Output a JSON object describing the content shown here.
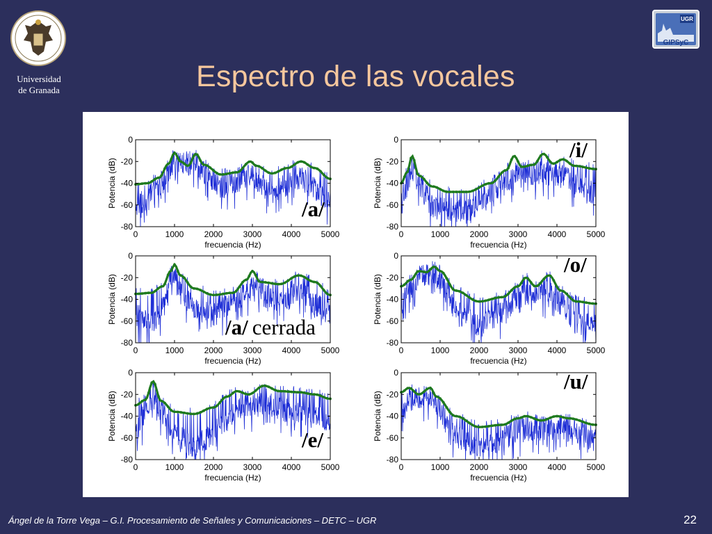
{
  "header": {
    "title": "Espectro de las vocales",
    "university": [
      "Universidad",
      "de Granada"
    ],
    "lab_logo_text": [
      "UGR",
      "GIPSyC"
    ]
  },
  "footer": {
    "text": "Ángel de la Torre Vega – G.I. Procesamiento de Señales y Comunicaciones – DETC – UGR",
    "page": "22"
  },
  "colors": {
    "background": "#2c2f5c",
    "title": "#f6c79d",
    "spectrum": "#1f2fd6",
    "envelope": "#1f7a1f"
  },
  "chart_data": [
    {
      "type": "line",
      "label": "/a/",
      "label_rest": "",
      "xlabel": "frecuencia (Hz)",
      "ylabel": "Potencia (dB)",
      "xlim": [
        0,
        5000
      ],
      "ylim": [
        -80,
        0
      ],
      "xticks": [
        0,
        1000,
        2000,
        3000,
        4000,
        5000
      ],
      "yticks": [
        0,
        -20,
        -40,
        -60,
        -80
      ],
      "series": [
        {
          "values": [
            [
              0,
              -41
            ],
            [
              300,
              -40
            ],
            [
              600,
              -35
            ],
            [
              850,
              -22
            ],
            [
              1000,
              -12
            ],
            [
              1150,
              -20
            ],
            [
              1350,
              -24
            ],
            [
              1550,
              -13
            ],
            [
              1750,
              -23
            ],
            [
              2200,
              -32
            ],
            [
              2600,
              -30
            ],
            [
              2950,
              -20
            ],
            [
              3100,
              -24
            ],
            [
              3500,
              -31
            ],
            [
              3900,
              -26
            ],
            [
              4250,
              -20
            ],
            [
              4600,
              -26
            ],
            [
              5000,
              -36
            ]
          ]
        },
        {
          "values": [
            [
              0,
              -60
            ],
            [
              300,
              -55
            ],
            [
              600,
              -42
            ],
            [
              1000,
              -20
            ],
            [
              1550,
              -22
            ],
            [
              2200,
              -45
            ],
            [
              2950,
              -32
            ],
            [
              3500,
              -48
            ],
            [
              4250,
              -35
            ],
            [
              5000,
              -58
            ]
          ]
        }
      ]
    },
    {
      "type": "line",
      "label": "/i/",
      "label_rest": "",
      "xlabel": "frecuencia (Hz)",
      "ylabel": "Potencia (dB)",
      "xlim": [
        0,
        5000
      ],
      "ylim": [
        -80,
        0
      ],
      "xticks": [
        0,
        1000,
        2000,
        3000,
        4000,
        5000
      ],
      "yticks": [
        0,
        -20,
        -40,
        -60,
        -80
      ],
      "series": [
        {
          "values": [
            [
              0,
              -40
            ],
            [
              150,
              -30
            ],
            [
              280,
              -15
            ],
            [
              450,
              -33
            ],
            [
              800,
              -43
            ],
            [
              1200,
              -48
            ],
            [
              1700,
              -48
            ],
            [
              2300,
              -40
            ],
            [
              2700,
              -28
            ],
            [
              2900,
              -15
            ],
            [
              3100,
              -25
            ],
            [
              3400,
              -23
            ],
            [
              3650,
              -13
            ],
            [
              3900,
              -22
            ],
            [
              4150,
              -18
            ],
            [
              4450,
              -24
            ],
            [
              5000,
              -27
            ]
          ]
        },
        {
          "values": [
            [
              0,
              -60
            ],
            [
              280,
              -30
            ],
            [
              800,
              -62
            ],
            [
              1700,
              -66
            ],
            [
              2900,
              -32
            ],
            [
              3650,
              -30
            ],
            [
              4150,
              -34
            ],
            [
              5000,
              -50
            ]
          ]
        }
      ]
    },
    {
      "type": "line",
      "label": "/a/",
      "label_rest": "cerrada",
      "xlabel": "frecuencia (Hz)",
      "ylabel": "Potencia (dB)",
      "xlim": [
        0,
        5000
      ],
      "ylim": [
        -80,
        0
      ],
      "xticks": [
        0,
        1000,
        2000,
        3000,
        4000,
        5000
      ],
      "yticks": [
        0,
        -20,
        -40,
        -60,
        -80
      ],
      "series": [
        {
          "values": [
            [
              0,
              -35
            ],
            [
              400,
              -34
            ],
            [
              700,
              -28
            ],
            [
              900,
              -14
            ],
            [
              1000,
              -8
            ],
            [
              1150,
              -18
            ],
            [
              1500,
              -30
            ],
            [
              2000,
              -36
            ],
            [
              2500,
              -34
            ],
            [
              2850,
              -22
            ],
            [
              3000,
              -14
            ],
            [
              3200,
              -24
            ],
            [
              3700,
              -26
            ],
            [
              4200,
              -18
            ],
            [
              4600,
              -24
            ],
            [
              5000,
              -36
            ]
          ]
        },
        {
          "values": [
            [
              0,
              -55
            ],
            [
              500,
              -60
            ],
            [
              1000,
              -22
            ],
            [
              1500,
              -50
            ],
            [
              2000,
              -55
            ],
            [
              3000,
              -30
            ],
            [
              3700,
              -45
            ],
            [
              4200,
              -32
            ],
            [
              5000,
              -55
            ]
          ]
        }
      ]
    },
    {
      "type": "line",
      "label": "/o/",
      "label_rest": "",
      "xlabel": "frecuencia (Hz)",
      "ylabel": "Potencia (dB)",
      "xlim": [
        0,
        5000
      ],
      "ylim": [
        -80,
        0
      ],
      "xticks": [
        0,
        1000,
        2000,
        3000,
        4000,
        5000
      ],
      "yticks": [
        0,
        -20,
        -40,
        -60,
        -80
      ],
      "series": [
        {
          "values": [
            [
              0,
              -28
            ],
            [
              250,
              -22
            ],
            [
              450,
              -14
            ],
            [
              650,
              -15
            ],
            [
              850,
              -10
            ],
            [
              1000,
              -14
            ],
            [
              1400,
              -32
            ],
            [
              2000,
              -42
            ],
            [
              2600,
              -38
            ],
            [
              3000,
              -28
            ],
            [
              3200,
              -20
            ],
            [
              3450,
              -28
            ],
            [
              3800,
              -18
            ],
            [
              4100,
              -32
            ],
            [
              4500,
              -42
            ],
            [
              5000,
              -44
            ]
          ]
        },
        {
          "values": [
            [
              0,
              -45
            ],
            [
              450,
              -20
            ],
            [
              850,
              -15
            ],
            [
              1400,
              -50
            ],
            [
              2000,
              -66
            ],
            [
              3200,
              -35
            ],
            [
              3800,
              -32
            ],
            [
              4500,
              -62
            ],
            [
              5000,
              -64
            ]
          ]
        }
      ]
    },
    {
      "type": "line",
      "label": "/e/",
      "label_rest": "",
      "xlabel": "frecuencia (Hz)",
      "ylabel": "Potencia (dB)",
      "xlim": [
        0,
        5000
      ],
      "ylim": [
        -80,
        0
      ],
      "xticks": [
        0,
        1000,
        2000,
        3000,
        4000,
        5000
      ],
      "yticks": [
        0,
        -20,
        -40,
        -60,
        -80
      ],
      "series": [
        {
          "values": [
            [
              0,
              -30
            ],
            [
              250,
              -25
            ],
            [
              450,
              -8
            ],
            [
              650,
              -26
            ],
            [
              1000,
              -36
            ],
            [
              1500,
              -38
            ],
            [
              2000,
              -32
            ],
            [
              2350,
              -22
            ],
            [
              2600,
              -17
            ],
            [
              2900,
              -20
            ],
            [
              3300,
              -12
            ],
            [
              3700,
              -17
            ],
            [
              4200,
              -18
            ],
            [
              4600,
              -20
            ],
            [
              5000,
              -24
            ]
          ]
        },
        {
          "values": [
            [
              0,
              -55
            ],
            [
              450,
              -22
            ],
            [
              1000,
              -55
            ],
            [
              1500,
              -70
            ],
            [
              2000,
              -55
            ],
            [
              2600,
              -35
            ],
            [
              3300,
              -28
            ],
            [
              4200,
              -38
            ],
            [
              5000,
              -45
            ]
          ]
        }
      ]
    },
    {
      "type": "line",
      "label": "/u/",
      "label_rest": "",
      "xlabel": "frecuencia (Hz)",
      "ylabel": "Potencia (dB)",
      "xlim": [
        0,
        5000
      ],
      "ylim": [
        -80,
        0
      ],
      "xticks": [
        0,
        1000,
        2000,
        3000,
        4000,
        5000
      ],
      "yticks": [
        0,
        -20,
        -40,
        -60,
        -80
      ],
      "series": [
        {
          "values": [
            [
              0,
              -18
            ],
            [
              200,
              -14
            ],
            [
              450,
              -20
            ],
            [
              750,
              -14
            ],
            [
              900,
              -22
            ],
            [
              1400,
              -40
            ],
            [
              2000,
              -50
            ],
            [
              2600,
              -48
            ],
            [
              3000,
              -42
            ],
            [
              3200,
              -40
            ],
            [
              3600,
              -44
            ],
            [
              4000,
              -40
            ],
            [
              4300,
              -42
            ],
            [
              5000,
              -48
            ]
          ]
        },
        {
          "values": [
            [
              0,
              -40
            ],
            [
              200,
              -25
            ],
            [
              750,
              -22
            ],
            [
              1400,
              -58
            ],
            [
              2000,
              -70
            ],
            [
              3200,
              -52
            ],
            [
              4000,
              -52
            ],
            [
              5000,
              -62
            ]
          ]
        }
      ]
    }
  ]
}
